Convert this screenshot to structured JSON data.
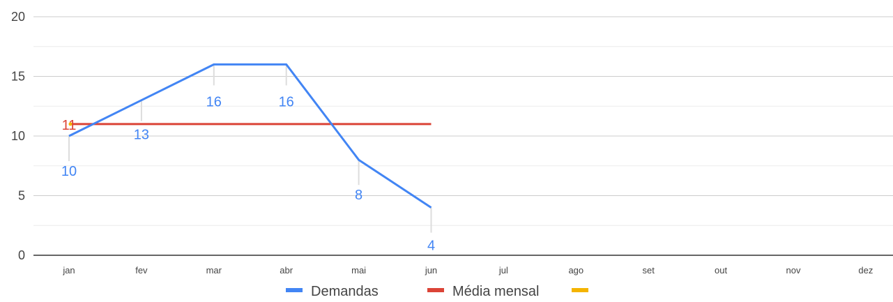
{
  "chart_data": {
    "type": "line",
    "categories": [
      "jan",
      "fev",
      "mar",
      "abr",
      "mai",
      "jun",
      "jul",
      "ago",
      "set",
      "out",
      "nov",
      "dez"
    ],
    "ylim": [
      0,
      20
    ],
    "yticks": [
      0,
      5,
      10,
      15,
      20
    ],
    "grid": true,
    "legend_position": "bottom",
    "series": [
      {
        "name": "Demandas",
        "color": "#4285f4",
        "values": [
          10,
          13,
          16,
          16,
          8,
          4,
          null,
          null,
          null,
          null,
          null,
          null
        ],
        "data_labels": [
          "10",
          "13",
          "16",
          "16",
          "8",
          "4"
        ]
      },
      {
        "name": "Média mensal",
        "color": "#db4437",
        "values": [
          11,
          11,
          11,
          11,
          11,
          11,
          null,
          null,
          null,
          null,
          null,
          null
        ],
        "data_labels": [
          "11"
        ]
      },
      {
        "name": "",
        "color": "#f4b400",
        "values": [
          11,
          null,
          null,
          null,
          null,
          null,
          null,
          null,
          null,
          null,
          null,
          null
        ]
      }
    ]
  }
}
